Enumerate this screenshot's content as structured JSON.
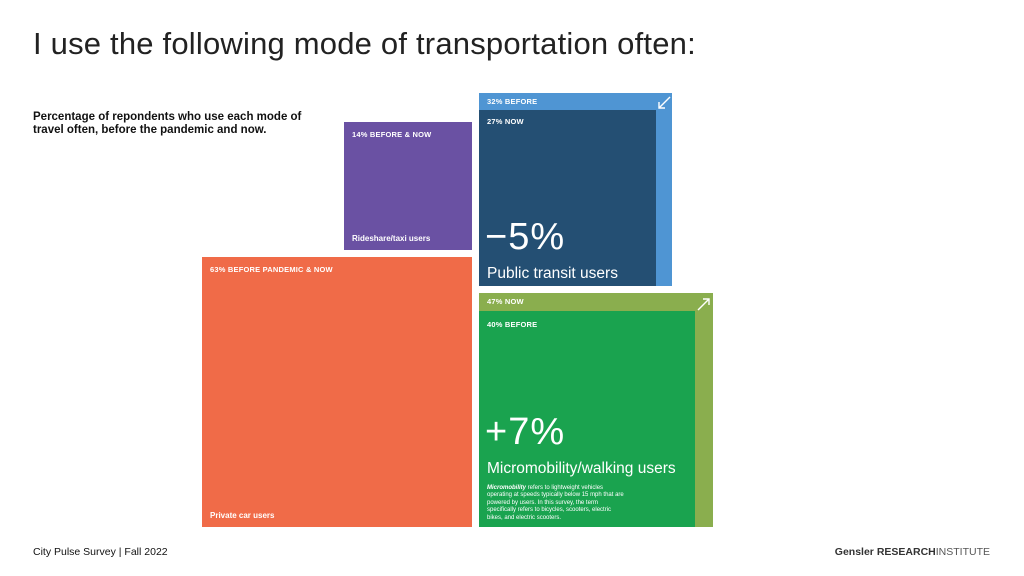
{
  "page": {
    "title": "I use the following mode of transportation often:",
    "subtitle": "Percentage of repondents who use each mode of travel often, before the pandemic and now.",
    "footer_left": "City Pulse Survey | Fall 2022",
    "footer_brand": "Gensler",
    "footer_research": "RESEARCH",
    "footer_institute": "INSTITUTE"
  },
  "chart_data": {
    "type": "treemap",
    "title": "I use the following mode of transportation often:",
    "subtitle": "Percentage of repondents who use each mode of travel often, before the pandemic and now.",
    "series": [
      {
        "name": "Rideshare/taxi users",
        "label": "14% BEFORE & NOW",
        "before": 14,
        "now": 14,
        "color": "#6a51a3"
      },
      {
        "name": "Public transit users",
        "before_label": "32% BEFORE",
        "now_label": "27% NOW",
        "before": 32,
        "now": 27,
        "change": "−5%",
        "color_before": "#4f95d3",
        "color_now": "#244f73"
      },
      {
        "name": "Private car users",
        "label": "63% BEFORE PANDEMIC & NOW",
        "before": 63,
        "now": 63,
        "color": "#f06b48"
      },
      {
        "name": "Micromobility/walking users",
        "now_label": "47% NOW",
        "before_label": "40% BEFORE",
        "before": 40,
        "now": 47,
        "change": "+7%",
        "color_before": "#1aa34f",
        "color_now": "#8aae4e",
        "note_em": "Micromobility",
        "note": " refers to lightweight vehicles operating at speeds typically below 15 mph that are powered by users. In this survey, the term specifically refers to bicycles, scooters, electric bikes, and electric scooters."
      }
    ]
  }
}
